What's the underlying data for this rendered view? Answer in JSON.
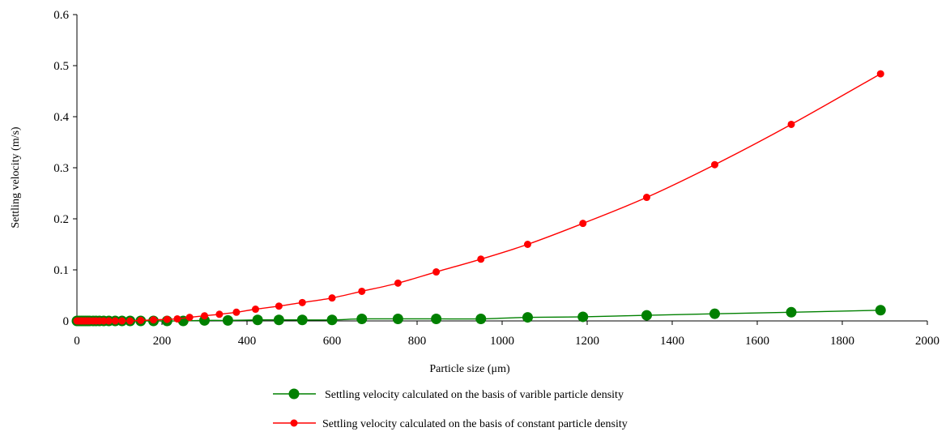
{
  "chart_data": {
    "type": "line",
    "xlabel": "Particle size (μm)",
    "ylabel": "Settling velocity (m/s)",
    "xlim": [
      0,
      2000
    ],
    "ylim": [
      0,
      0.6
    ],
    "xticks": [
      "0",
      "200",
      "400",
      "600",
      "800",
      "1000",
      "1200",
      "1400",
      "1600",
      "1800",
      "2000"
    ],
    "yticks": [
      "0",
      "0.1",
      "0.2",
      "0.3",
      "0.4",
      "0.5",
      "0.6"
    ],
    "grid": false,
    "legend_position": "bottom",
    "series": [
      {
        "name": "Settling velocity calculated on the basis of varible particle density",
        "color": "#008000",
        "marker": "circle-large",
        "points": [
          [
            0,
            0.0
          ],
          [
            5,
            0.0
          ],
          [
            10,
            0.0
          ],
          [
            15,
            0.0
          ],
          [
            20,
            0.0
          ],
          [
            25,
            0.0
          ],
          [
            30,
            0.0
          ],
          [
            38,
            0.0
          ],
          [
            45,
            0.0
          ],
          [
            53,
            0.0
          ],
          [
            63,
            0.0
          ],
          [
            75,
            0.0
          ],
          [
            90,
            0.0
          ],
          [
            106,
            0.0
          ],
          [
            125,
            0.0
          ],
          [
            150,
            0.0
          ],
          [
            180,
            0.0
          ],
          [
            212,
            0.0
          ],
          [
            250,
            0.0
          ],
          [
            300,
            0.001
          ],
          [
            355,
            0.001
          ],
          [
            425,
            0.002
          ],
          [
            500,
            0.002
          ],
          [
            600,
            0.003
          ],
          [
            710,
            0.004
          ],
          [
            850,
            0.005
          ],
          [
            1000,
            0.006
          ],
          [
            1180,
            0.008
          ],
          [
            1400,
            0.011
          ],
          [
            1700,
            0.015
          ],
          [
            1890,
            0.02
          ]
        ],
        "display_points": [
          [
            0,
            0.0
          ],
          [
            5,
            0.0
          ],
          [
            10,
            0.0
          ],
          [
            15,
            0.0
          ],
          [
            20,
            0.0
          ],
          [
            25,
            0.0
          ],
          [
            30,
            0.0
          ],
          [
            38,
            0.0
          ],
          [
            45,
            0.0
          ],
          [
            53,
            0.0
          ],
          [
            63,
            0.0
          ],
          [
            75,
            0.0
          ],
          [
            90,
            0.0
          ],
          [
            106,
            0.0
          ],
          [
            125,
            0.0
          ],
          [
            150,
            0.0
          ],
          [
            180,
            0.0
          ],
          [
            212,
            0.0
          ],
          [
            250,
            0.0
          ],
          [
            300,
            0.001
          ],
          [
            355,
            0.001
          ],
          [
            425,
            0.002
          ],
          [
            475,
            0.002
          ],
          [
            530,
            0.002
          ],
          [
            600,
            0.002
          ],
          [
            670,
            0.004
          ],
          [
            755,
            0.004
          ],
          [
            845,
            0.004
          ],
          [
            950,
            0.004
          ],
          [
            1060,
            0.007
          ],
          [
            1190,
            0.008
          ],
          [
            1340,
            0.011
          ],
          [
            1500,
            0.014
          ],
          [
            1680,
            0.017
          ],
          [
            1890,
            0.021
          ]
        ]
      },
      {
        "name": "Settling velocity calculated on the basis of constant particle density",
        "color": "#ff0000",
        "marker": "circle-small",
        "points": [
          [
            0,
            0.0
          ],
          [
            5,
            0.0
          ],
          [
            10,
            0.0
          ],
          [
            15,
            0.0
          ],
          [
            20,
            0.0
          ],
          [
            25,
            0.0
          ],
          [
            30,
            0.0
          ],
          [
            38,
            0.0
          ],
          [
            45,
            0.0
          ],
          [
            53,
            0.0
          ],
          [
            63,
            0.0
          ],
          [
            75,
            0.0
          ],
          [
            90,
            0.0
          ],
          [
            106,
            0.0
          ],
          [
            125,
            0.0
          ],
          [
            150,
            0.001
          ],
          [
            180,
            0.001
          ],
          [
            212,
            0.002
          ],
          [
            250,
            0.003
          ],
          [
            300,
            0.005
          ],
          [
            355,
            0.008
          ],
          [
            425,
            0.012
          ],
          [
            500,
            0.018
          ],
          [
            600,
            0.026
          ],
          [
            710,
            0.036
          ],
          [
            850,
            0.048
          ]
        ],
        "display_points": [
          [
            0,
            0.0
          ],
          [
            5,
            0.0
          ],
          [
            10,
            0.0
          ],
          [
            15,
            0.0
          ],
          [
            20,
            0.0
          ],
          [
            25,
            0.0
          ],
          [
            30,
            0.0
          ],
          [
            38,
            0.0
          ],
          [
            45,
            0.0
          ],
          [
            53,
            0.0
          ],
          [
            63,
            0.0
          ],
          [
            75,
            0.0
          ],
          [
            90,
            0.0
          ],
          [
            106,
            0.0
          ],
          [
            125,
            0.0
          ],
          [
            150,
            0.001
          ],
          [
            180,
            0.002
          ],
          [
            212,
            0.003
          ],
          [
            236,
            0.004
          ],
          [
            265,
            0.007
          ],
          [
            300,
            0.01
          ],
          [
            335,
            0.013
          ],
          [
            375,
            0.017
          ],
          [
            420,
            0.023
          ],
          [
            475,
            0.029
          ],
          [
            530,
            0.036
          ],
          [
            600,
            0.045
          ],
          [
            670,
            0.058
          ],
          [
            755,
            0.074
          ],
          [
            845,
            0.096
          ],
          [
            950,
            0.121
          ],
          [
            1060,
            0.15
          ],
          [
            1190,
            0.191
          ],
          [
            1340,
            0.242
          ],
          [
            1500,
            0.306
          ],
          [
            1680,
            0.385
          ],
          [
            1890,
            0.484
          ]
        ]
      }
    ]
  }
}
